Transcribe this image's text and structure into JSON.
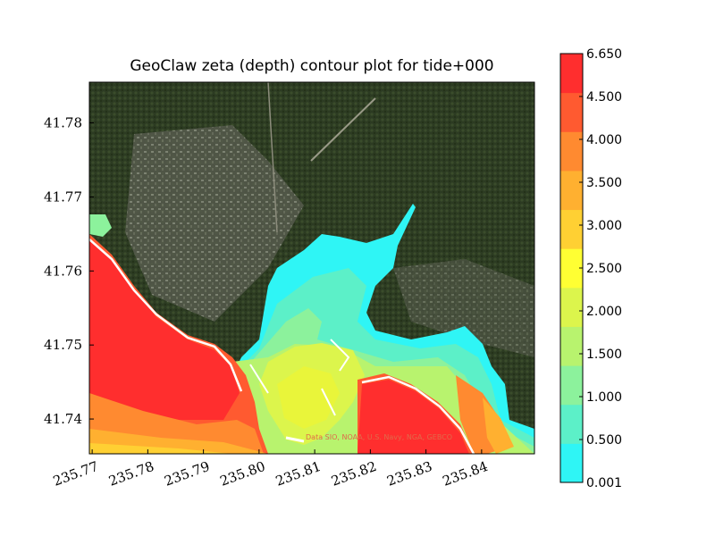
{
  "chart_data": {
    "type": "heatmap",
    "title": "GeoClaw zeta (depth) contour plot for tide+000",
    "xlabel": "",
    "ylabel": "",
    "x_ticks": [
      "235.77",
      "235.78",
      "235.79",
      "235.80",
      "235.81",
      "235.82",
      "235.83",
      "235.84"
    ],
    "y_ticks": [
      "41.74",
      "41.75",
      "41.76",
      "41.77",
      "41.78"
    ],
    "xlim": [
      235.7695,
      235.8495
    ],
    "ylim": [
      41.7353,
      41.7855
    ],
    "colorbar": {
      "levels": [
        "0.001",
        "0.500",
        "1.000",
        "1.500",
        "2.000",
        "2.500",
        "3.000",
        "3.500",
        "4.000",
        "4.500",
        "6.650"
      ],
      "colors": [
        "#2ff5f5",
        "#5cf0c8",
        "#8cf29c",
        "#b8f36e",
        "#dcf54c",
        "#ffff33",
        "#ffd033",
        "#ffb030",
        "#ff8a30",
        "#ff5a30",
        "#ff2e2e"
      ]
    },
    "attribution": "Data SIO, NOAA, U.S. Navy, NGA, GEBCO",
    "background": "satellite imagery"
  }
}
